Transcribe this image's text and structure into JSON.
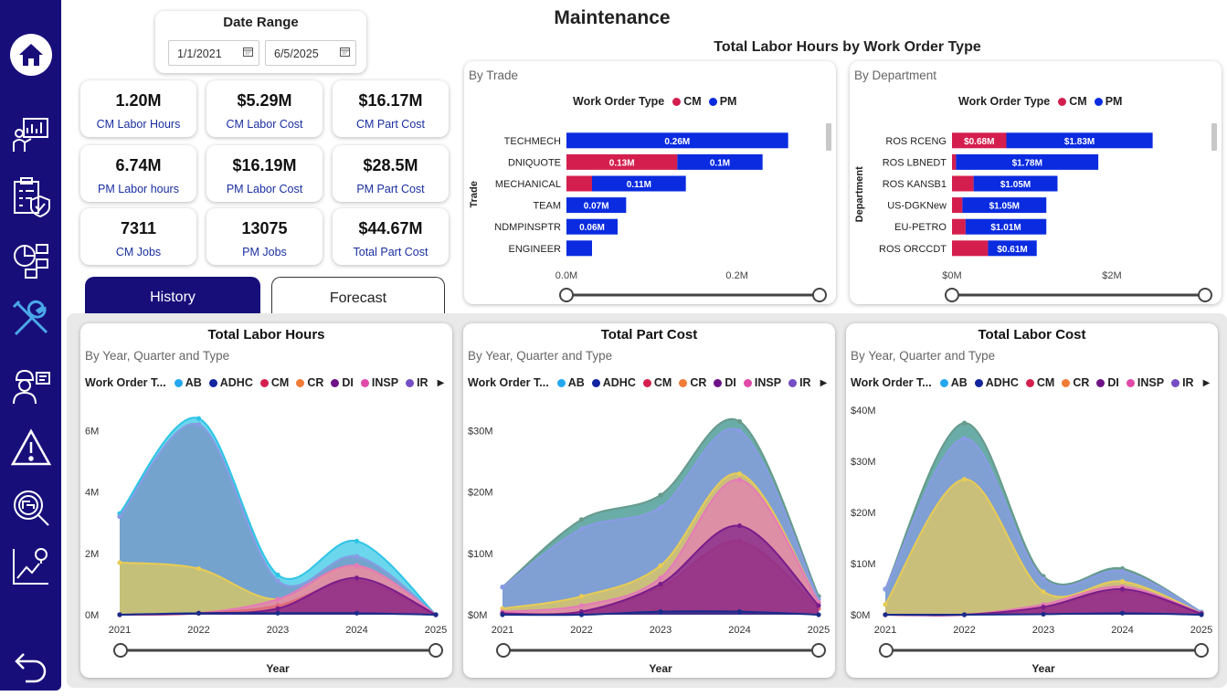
{
  "title": "Maintenance",
  "date_range": {
    "title": "Date Range",
    "start": "1/1/2021",
    "end": "6/5/2025"
  },
  "kpis": [
    {
      "value": "1.20M",
      "label": "CM Labor Hours"
    },
    {
      "value": "$5.29M",
      "label": "CM Labor Cost"
    },
    {
      "value": "$16.17M",
      "label": "CM Part Cost"
    },
    {
      "value": "6.74M",
      "label": "PM Labor hours"
    },
    {
      "value": "$16.19M",
      "label": "PM Labor Cost"
    },
    {
      "value": "$28.5M",
      "label": "PM Part Cost"
    },
    {
      "value": "7311",
      "label": "CM Jobs"
    },
    {
      "value": "13075",
      "label": "PM Jobs"
    },
    {
      "value": "$44.67M",
      "label": "Total Part Cost"
    }
  ],
  "tabs": {
    "history": "History",
    "forecast": "Forecast"
  },
  "sidebar": {
    "icons": [
      "home-icon",
      "dashboard-icon",
      "checklist-shield-icon",
      "org-chart-icon",
      "tools-icon",
      "worker-icon",
      "warning-icon",
      "inspection-icon",
      "trend-icon",
      "back-icon"
    ]
  },
  "colors": {
    "CM": "#d41f4e",
    "PM": "#0a2be0",
    "AB": "#23a8f0",
    "ADHC": "#12259e",
    "CR": "#f07b37",
    "DI": "#6e1387",
    "INSP": "#e04aa8",
    "IR": "#744ec2",
    "sidebar": "#180e7a",
    "active_tab": "#180e7a"
  },
  "bar_group_title": "Total Labor Hours by Work Order Type",
  "bar_legend": {
    "title": "Work Order Type",
    "items": [
      "CM",
      "PM"
    ]
  },
  "area_legend": {
    "title": "Work Order T...",
    "items": [
      "AB",
      "ADHC",
      "CM",
      "CR",
      "DI",
      "INSP",
      "IR"
    ]
  },
  "chart_data": [
    {
      "type": "bar",
      "orientation": "horizontal",
      "stacked": true,
      "subtitle": "By Trade",
      "ylabel": "Trade",
      "categories": [
        "TECHMECH",
        "DNIQUOTE",
        "MECHANICAL",
        "TEAM",
        "NDMPINSPTR",
        "ENGINEER"
      ],
      "series": [
        {
          "name": "CM",
          "values": [
            0,
            0.13,
            0.03,
            0,
            0,
            0
          ]
        },
        {
          "name": "PM",
          "values": [
            0.26,
            0.1,
            0.11,
            0.07,
            0.06,
            0.03
          ]
        }
      ],
      "data_labels": [
        [
          "",
          "0.26M"
        ],
        [
          "0.13M",
          "0.1M"
        ],
        [
          "",
          "0.11M"
        ],
        [
          "",
          "0.07M"
        ],
        [
          "",
          "0.06M"
        ],
        [
          "",
          ""
        ]
      ],
      "xlim": [
        0,
        0.3
      ],
      "xticks": [
        "0.0M",
        "0.2M"
      ],
      "xtick_values": [
        0,
        0.2
      ]
    },
    {
      "type": "bar",
      "orientation": "horizontal",
      "stacked": true,
      "subtitle": "By Department",
      "ylabel": "Department",
      "categories": [
        "ROS RCENG",
        "ROS LBNEDT",
        "ROS KANSB1",
        "US-DGKNew",
        "EU-PETRO",
        "ROS ORCCDT"
      ],
      "series": [
        {
          "name": "CM",
          "values": [
            0.68,
            0.05,
            0.27,
            0.13,
            0.17,
            0.45
          ]
        },
        {
          "name": "PM",
          "values": [
            1.83,
            1.78,
            1.05,
            1.05,
            1.01,
            0.61
          ]
        }
      ],
      "data_labels": [
        [
          "$0.68M",
          "$1.83M"
        ],
        [
          "",
          "$1.78M"
        ],
        [
          "",
          "$1.05M"
        ],
        [
          "",
          "$1.05M"
        ],
        [
          "",
          "$1.01M"
        ],
        [
          "",
          "$0.61M"
        ]
      ],
      "xlim": [
        0,
        3.2
      ],
      "xticks": [
        "$0M",
        "$2M"
      ],
      "xtick_values": [
        0,
        2
      ]
    },
    {
      "type": "area",
      "title": "Total Labor Hours",
      "subtitle": "By Year, Quarter and Type",
      "xlabel": "Year",
      "x": [
        "2021",
        "2022",
        "2023",
        "2024",
        "2025"
      ],
      "ylim": [
        0,
        7
      ],
      "yticks": [
        "0M",
        "2M",
        "4M",
        "6M"
      ],
      "ytick_values": [
        0,
        2,
        4,
        6
      ],
      "layers": [
        {
          "name": "total",
          "color": "#2ec4e6",
          "values": [
            3.3,
            6.4,
            1.3,
            2.4,
            0
          ]
        },
        {
          "name": "green",
          "color": "#2fa86f",
          "values": [
            3.2,
            6.2,
            1.1,
            1.9,
            0
          ]
        },
        {
          "name": "blue",
          "color": "#8a9be6",
          "values": [
            3.2,
            6.2,
            1.1,
            1.9,
            0
          ]
        },
        {
          "name": "yellow",
          "color": "#e8cc55",
          "values": [
            1.7,
            1.5,
            0.5,
            1.6,
            0
          ]
        },
        {
          "name": "pink",
          "color": "#e57ab8",
          "values": [
            0,
            0.05,
            0.5,
            1.6,
            0
          ]
        },
        {
          "name": "red",
          "color": "#e06a7a",
          "values": [
            0,
            0.05,
            0.3,
            1.1,
            0
          ]
        },
        {
          "name": "purple",
          "color": "#7a1d8a",
          "values": [
            0,
            0.05,
            0.2,
            1.2,
            0
          ]
        },
        {
          "name": "navy",
          "color": "#1a2c8a",
          "values": [
            0,
            0.05,
            0.05,
            0.05,
            0
          ]
        }
      ]
    },
    {
      "type": "area",
      "title": "Total Part Cost",
      "subtitle": "By Year, Quarter and Type",
      "xlabel": "Year",
      "x": [
        "2021",
        "2022",
        "2023",
        "2024",
        "2025"
      ],
      "ylim": [
        0,
        35
      ],
      "yticks": [
        "$0M",
        "$10M",
        "$20M",
        "$30M"
      ],
      "ytick_values": [
        0,
        10,
        20,
        30
      ],
      "layers": [
        {
          "name": "total",
          "color": "#2ec4e6",
          "values": [
            4.5,
            15.5,
            19.5,
            31.5,
            3
          ]
        },
        {
          "name": "green",
          "color": "#6a9a8a",
          "values": [
            4.5,
            15.5,
            19.5,
            31.5,
            3
          ]
        },
        {
          "name": "blue",
          "color": "#8a9be6",
          "values": [
            4.5,
            14,
            17.5,
            30,
            2.5
          ]
        },
        {
          "name": "yellow",
          "color": "#e8cc55",
          "values": [
            1,
            3,
            8,
            23,
            2
          ]
        },
        {
          "name": "pink",
          "color": "#e57ab8",
          "values": [
            0.5,
            1.5,
            6,
            22,
            2
          ]
        },
        {
          "name": "red",
          "color": "#e06a7a",
          "values": [
            0.2,
            0.5,
            4.5,
            12,
            1
          ]
        },
        {
          "name": "purple",
          "color": "#7a1d8a",
          "values": [
            0.2,
            0.5,
            5,
            14.5,
            1.5
          ]
        },
        {
          "name": "navy",
          "color": "#1a2c8a",
          "values": [
            0,
            0,
            0.5,
            0.5,
            0
          ]
        }
      ]
    },
    {
      "type": "area",
      "title": "Total Labor Cost",
      "subtitle": "By Year, Quarter and Type",
      "xlabel": "Year",
      "x": [
        "2021",
        "2022",
        "2023",
        "2024",
        "2025"
      ],
      "ylim": [
        0,
        42
      ],
      "yticks": [
        "$0M",
        "$10M",
        "$20M",
        "$30M",
        "$40M"
      ],
      "ytick_values": [
        0,
        10,
        20,
        30,
        40
      ],
      "layers": [
        {
          "name": "total",
          "color": "#2ec4e6",
          "values": [
            5,
            37.5,
            7.5,
            9,
            0.5
          ]
        },
        {
          "name": "green",
          "color": "#6a9a8a",
          "values": [
            5,
            37.5,
            7.5,
            9,
            0.5
          ]
        },
        {
          "name": "blue",
          "color": "#8a9be6",
          "values": [
            5,
            34.5,
            7,
            8.5,
            0.5
          ]
        },
        {
          "name": "yellow",
          "color": "#e8cc55",
          "values": [
            2,
            26.5,
            4.5,
            6.5,
            0.3
          ]
        },
        {
          "name": "pink",
          "color": "#e57ab8",
          "values": [
            0,
            0,
            2,
            5.5,
            0.3
          ]
        },
        {
          "name": "red",
          "color": "#e06a7a",
          "values": [
            0,
            0,
            1.5,
            4.5,
            0.2
          ]
        },
        {
          "name": "purple",
          "color": "#7a1d8a",
          "values": [
            0,
            0,
            1.5,
            5,
            0.2
          ]
        },
        {
          "name": "navy",
          "color": "#1a2c8a",
          "values": [
            0,
            0,
            0.1,
            0.3,
            0
          ]
        }
      ]
    }
  ]
}
